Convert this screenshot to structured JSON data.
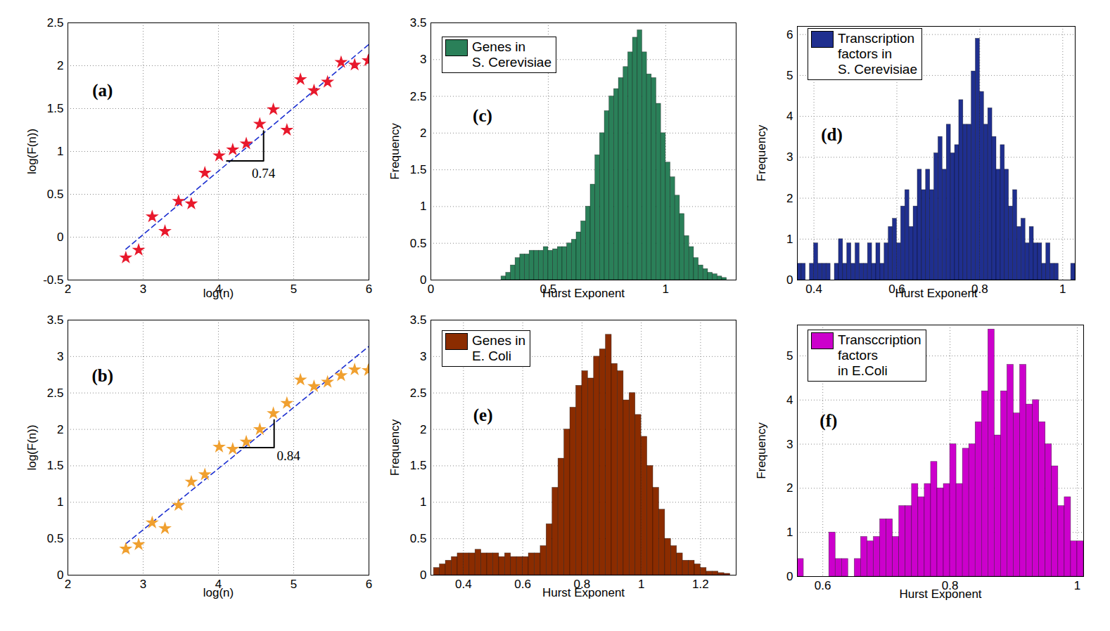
{
  "chart_data": [
    {
      "type": "scatter",
      "xlabel": "log(n)",
      "ylabel": "log(F(n))",
      "x": [
        2.77,
        2.94,
        3.12,
        3.29,
        3.47,
        3.64,
        3.82,
        4.01,
        4.19,
        4.37,
        4.55,
        4.73,
        4.91,
        5.09,
        5.27,
        5.45,
        5.63,
        5.81,
        5.99
      ],
      "y": [
        -0.24,
        -0.15,
        0.24,
        0.07,
        0.42,
        0.39,
        0.75,
        0.95,
        1.02,
        1.09,
        1.32,
        1.49,
        1.25,
        1.84,
        1.71,
        1.81,
        2.04,
        2.01,
        2.06
      ],
      "color": "#e8192c",
      "marker": "star",
      "fit_line": {
        "x": [
          2.77,
          6
        ],
        "y": [
          -0.14,
          2.25
        ],
        "color": "#1c2fd0",
        "line_style": "dashed"
      },
      "slope_triangle": {
        "x": [
          4.11,
          4.6
        ],
        "y": [
          0.89,
          1.24
        ]
      },
      "annotations": [
        {
          "text": "0.74",
          "x": 4.6,
          "y": 0.74
        }
      ],
      "panel_label": {
        "text": "(a)",
        "x": 2.46,
        "y": 1.71
      },
      "xlim": [
        2,
        6
      ],
      "xticks": [
        2,
        3,
        4,
        5,
        6
      ],
      "ylim": [
        -0.5,
        2.5
      ],
      "yticks": [
        -0.5,
        0,
        0.5,
        1,
        1.5,
        2,
        2.5
      ],
      "grid": true
    },
    {
      "type": "scatter",
      "xlabel": "log(n)",
      "ylabel": "log(F(n))",
      "x": [
        2.77,
        2.94,
        3.12,
        3.29,
        3.47,
        3.64,
        3.82,
        4.01,
        4.19,
        4.37,
        4.55,
        4.73,
        4.91,
        5.09,
        5.27,
        5.45,
        5.63,
        5.81,
        5.99
      ],
      "y": [
        0.36,
        0.42,
        0.72,
        0.64,
        0.96,
        1.28,
        1.38,
        1.76,
        1.73,
        1.83,
        2.0,
        2.22,
        2.36,
        2.68,
        2.59,
        2.65,
        2.74,
        2.82,
        2.81
      ],
      "color": "#f0a030",
      "marker": "star",
      "fit_line": {
        "x": [
          2.77,
          6
        ],
        "y": [
          0.43,
          3.14
        ],
        "color": "#1c2fd0",
        "line_style": "dashed"
      },
      "slope_triangle": {
        "x": [
          4.28,
          4.74
        ],
        "y": [
          1.75,
          2.13
        ]
      },
      "annotations": [
        {
          "text": "0.84",
          "x": 4.93,
          "y": 1.64
        }
      ],
      "panel_label": {
        "text": "(b)",
        "x": 2.46,
        "y": 2.73
      },
      "xlim": [
        2,
        6
      ],
      "xticks": [
        2,
        3,
        4,
        5,
        6
      ],
      "ylim": [
        0,
        3.5
      ],
      "yticks": [
        0,
        0.5,
        1,
        1.5,
        2,
        2.5,
        3,
        3.5
      ],
      "grid": true
    },
    {
      "type": "histogram",
      "xlabel": "Hurst Exponent",
      "ylabel": "Frequency",
      "series": [
        {
          "name": "Genes in\nS. Cerevisiae",
          "color": "#2a8059"
        }
      ],
      "legend": "top-left",
      "bins": [
        0.3,
        0.32,
        0.34,
        0.36,
        0.38,
        0.4,
        0.42,
        0.44,
        0.46,
        0.48,
        0.5,
        0.52,
        0.54,
        0.56,
        0.58,
        0.6,
        0.62,
        0.64,
        0.66,
        0.68,
        0.7,
        0.72,
        0.74,
        0.76,
        0.78,
        0.8,
        0.82,
        0.84,
        0.86,
        0.88,
        0.9,
        0.92,
        0.94,
        0.96,
        0.98,
        1,
        1.02,
        1.04,
        1.06,
        1.08,
        1.1,
        1.12,
        1.14,
        1.16,
        1.18,
        1.2,
        1.22,
        1.24,
        1.26
      ],
      "counts": [
        0.05,
        0.1,
        0.2,
        0.3,
        0.35,
        0.35,
        0.4,
        0.4,
        0.4,
        0.45,
        0.4,
        0.42,
        0.45,
        0.45,
        0.5,
        0.55,
        0.65,
        0.8,
        1.0,
        1.3,
        1.7,
        2.0,
        2.3,
        2.5,
        2.6,
        2.75,
        2.9,
        3.1,
        3.3,
        3.4,
        3.1,
        2.8,
        2.75,
        2.4,
        2.0,
        1.6,
        1.4,
        1.15,
        0.9,
        0.6,
        0.45,
        0.3,
        0.2,
        0.15,
        0.1,
        0.08,
        0.05,
        0.03
      ],
      "panel_label": {
        "text": "(c)",
        "x": 0.22,
        "y": 2.23
      },
      "xlim": [
        0,
        1.3
      ],
      "xticks": [
        0,
        0.5,
        1
      ],
      "ylim": [
        0,
        3.5
      ],
      "yticks": [
        0,
        0.5,
        1,
        1.5,
        2,
        2.5,
        3,
        3.5
      ],
      "grid": true
    },
    {
      "type": "histogram",
      "xlabel": "Hurst Exponent",
      "ylabel": "Frequency",
      "series": [
        {
          "name": "Transcription\nfactors in\nS. Cerevisiae",
          "color": "#1f2f8f"
        }
      ],
      "legend": "top-left",
      "bins": [
        0.36,
        0.37,
        0.38,
        0.39,
        0.4,
        0.41,
        0.42,
        0.43,
        0.44,
        0.45,
        0.46,
        0.47,
        0.48,
        0.49,
        0.5,
        0.51,
        0.52,
        0.53,
        0.54,
        0.55,
        0.56,
        0.57,
        0.58,
        0.59,
        0.6,
        0.61,
        0.62,
        0.63,
        0.64,
        0.65,
        0.66,
        0.67,
        0.68,
        0.69,
        0.7,
        0.71,
        0.72,
        0.73,
        0.74,
        0.75,
        0.76,
        0.77,
        0.78,
        0.79,
        0.8,
        0.81,
        0.82,
        0.83,
        0.84,
        0.85,
        0.86,
        0.87,
        0.88,
        0.89,
        0.9,
        0.91,
        0.92,
        0.93,
        0.94,
        0.95,
        0.96,
        0.97,
        0.98,
        0.99,
        1,
        1.01,
        1.02,
        1.03
      ],
      "counts": [
        0.4,
        0.4,
        0,
        0.4,
        0.9,
        0.4,
        0.4,
        0.4,
        0,
        0.4,
        1.0,
        0.4,
        0.9,
        0.4,
        0.9,
        0.4,
        0.4,
        0.9,
        0.4,
        0.9,
        0.4,
        0.9,
        1.3,
        1.5,
        0.9,
        1.8,
        2.2,
        1.3,
        1.8,
        2.7,
        2.2,
        2.7,
        2.2,
        3.1,
        3.5,
        2.7,
        3.8,
        3.1,
        3.3,
        4.4,
        3.8,
        3.8,
        5.1,
        5.9,
        4.6,
        3.8,
        4.2,
        3.5,
        2.7,
        3.3,
        2.7,
        1.8,
        2.2,
        1.3,
        1.5,
        0.9,
        1.3,
        0.9,
        0.9,
        0.4,
        0.9,
        0.4,
        0.4,
        0,
        0,
        0,
        0.4
      ],
      "panel_label": {
        "text": "(d)",
        "x": 0.443,
        "y": 3.54
      },
      "xlim": [
        0.36,
        1.03
      ],
      "xticks": [
        0.4,
        0.6,
        0.8,
        1
      ],
      "ylim": [
        0,
        6.2
      ],
      "yticks": [
        0,
        1,
        2,
        3,
        4,
        5,
        6
      ],
      "grid": true
    },
    {
      "type": "histogram",
      "xlabel": "Hurst Exponent",
      "ylabel": "Frequency",
      "series": [
        {
          "name": "Genes in\nE. Coli",
          "color": "#8b2c00"
        }
      ],
      "legend": "top-left",
      "bins": [
        0.3,
        0.32,
        0.34,
        0.36,
        0.38,
        0.4,
        0.42,
        0.44,
        0.46,
        0.48,
        0.5,
        0.52,
        0.54,
        0.56,
        0.58,
        0.6,
        0.62,
        0.64,
        0.66,
        0.68,
        0.7,
        0.72,
        0.74,
        0.76,
        0.78,
        0.8,
        0.82,
        0.84,
        0.86,
        0.88,
        0.9,
        0.92,
        0.94,
        0.96,
        0.98,
        1,
        1.02,
        1.04,
        1.06,
        1.08,
        1.1,
        1.12,
        1.14,
        1.16,
        1.18,
        1.2,
        1.22,
        1.24,
        1.26,
        1.28,
        1.3
      ],
      "counts": [
        0.1,
        0.15,
        0.2,
        0.25,
        0.3,
        0.3,
        0.3,
        0.35,
        0.3,
        0.3,
        0.3,
        0.25,
        0.3,
        0.25,
        0.25,
        0.25,
        0.3,
        0.3,
        0.4,
        0.7,
        1.2,
        1.6,
        2.0,
        2.3,
        2.6,
        2.8,
        2.7,
        3.0,
        3.1,
        3.3,
        2.9,
        2.8,
        2.4,
        2.5,
        2.2,
        1.9,
        1.5,
        1.2,
        0.9,
        0.5,
        0.4,
        0.3,
        0.2,
        0.2,
        0.15,
        0.1,
        0.05,
        0.05,
        0.03,
        0.02
      ],
      "panel_label": {
        "text": "(e)",
        "x": 0.466,
        "y": 2.19
      },
      "xlim": [
        0.29,
        1.32
      ],
      "xticks": [
        0.4,
        0.6,
        0.8,
        1,
        1.2
      ],
      "ylim": [
        0,
        3.5
      ],
      "yticks": [
        0,
        0.5,
        1,
        1.5,
        2,
        2.5,
        3,
        3.5
      ],
      "grid": true
    },
    {
      "type": "histogram",
      "xlabel": "Hurst Exponent",
      "ylabel": "Frequency",
      "series": [
        {
          "name": "Transccription\nfactors\nin E.Coli",
          "color": "#cc00cc"
        }
      ],
      "legend": "top-left",
      "bins": [
        0.56,
        0.57,
        0.58,
        0.59,
        0.6,
        0.61,
        0.62,
        0.63,
        0.64,
        0.65,
        0.66,
        0.67,
        0.68,
        0.69,
        0.7,
        0.71,
        0.72,
        0.73,
        0.74,
        0.75,
        0.76,
        0.77,
        0.78,
        0.79,
        0.8,
        0.81,
        0.82,
        0.83,
        0.84,
        0.85,
        0.86,
        0.87,
        0.88,
        0.89,
        0.9,
        0.91,
        0.92,
        0.93,
        0.94,
        0.95,
        0.96,
        0.97,
        0.98,
        0.99,
        1,
        1.01
      ],
      "counts": [
        0.4,
        0,
        0,
        0,
        0,
        1.0,
        0.4,
        0.4,
        0,
        0.4,
        0.9,
        0.8,
        0.9,
        1.3,
        1.3,
        0.9,
        1.6,
        1.6,
        2.1,
        1.8,
        2.1,
        2.6,
        2.0,
        2.1,
        3.0,
        2.1,
        2.9,
        3.0,
        3.5,
        4.2,
        5.6,
        3.2,
        4.2,
        4.8,
        3.7,
        4.8,
        3.9,
        4.0,
        3.5,
        3.0,
        2.5,
        1.6,
        1.8,
        0.8,
        0.8
      ],
      "panel_label": {
        "text": "(f)",
        "x": 0.609,
        "y": 3.53
      },
      "xlim": [
        0.56,
        1.01
      ],
      "xticks": [
        0.6,
        0.8,
        1
      ],
      "ylim": [
        0,
        5.7
      ],
      "yticks": [
        0,
        1,
        2,
        3,
        4,
        5
      ],
      "grid": true
    }
  ]
}
